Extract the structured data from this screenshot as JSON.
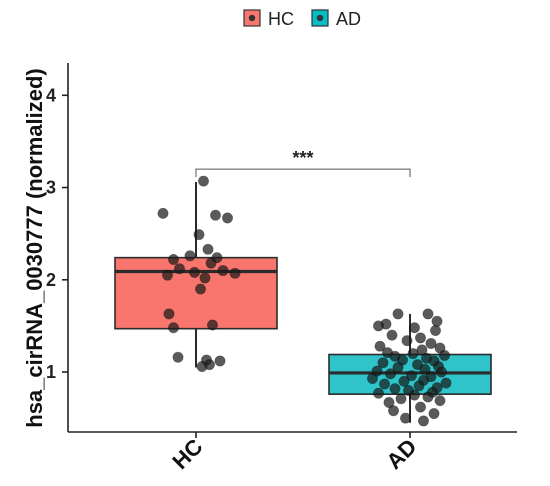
{
  "chart_data": {
    "type": "box",
    "ylabel": "hsa_cirRNA_0030777 (normalized)",
    "xlabel": "",
    "categories": [
      "HC",
      "AD"
    ],
    "ylim": [
      0.35,
      4.35
    ],
    "yticks": [
      1,
      2,
      3,
      4
    ],
    "grid": false,
    "legend": {
      "position": "top",
      "entries": [
        {
          "name": "HC",
          "color": "#F8766D"
        },
        {
          "name": "AD",
          "color": "#00BFC4"
        }
      ]
    },
    "significance": {
      "label": "***",
      "between": [
        "HC",
        "AD"
      ],
      "y": 3.2
    },
    "boxes": [
      {
        "group": "HC",
        "whisker_low": 1.05,
        "q1": 1.47,
        "median": 2.09,
        "q3": 2.24,
        "whisker_high": 3.06,
        "color": "#F8766D"
      },
      {
        "group": "AD",
        "whisker_low": 0.45,
        "q1": 0.76,
        "median": 0.99,
        "q3": 1.19,
        "whisker_high": 1.63,
        "color": "#2EC4C9"
      }
    ],
    "points": [
      {
        "group": "HC",
        "values": [
          3.07,
          2.72,
          2.7,
          2.67,
          2.49,
          2.33,
          2.26,
          2.24,
          2.22,
          2.18,
          2.12,
          2.1,
          2.08,
          2.07,
          2.05,
          2.02,
          1.9,
          1.63,
          1.51,
          1.48,
          1.16,
          1.13,
          1.12,
          1.08,
          1.06
        ],
        "jitter": [
          0.05,
          -0.22,
          0.13,
          0.21,
          0.02,
          0.08,
          -0.04,
          0.14,
          -0.15,
          0.1,
          -0.11,
          0.18,
          -0.01,
          0.26,
          -0.19,
          0.06,
          0.03,
          -0.18,
          0.11,
          -0.15,
          -0.12,
          0.07,
          0.16,
          0.09,
          0.04
        ]
      },
      {
        "group": "AD",
        "values": [
          1.63,
          1.63,
          1.55,
          1.52,
          1.5,
          1.48,
          1.45,
          1.4,
          1.37,
          1.34,
          1.31,
          1.28,
          1.26,
          1.24,
          1.21,
          1.2,
          1.18,
          1.17,
          1.15,
          1.13,
          1.12,
          1.1,
          1.08,
          1.06,
          1.05,
          1.03,
          1.01,
          1.0,
          0.98,
          0.96,
          0.95,
          0.93,
          0.91,
          0.9,
          0.88,
          0.87,
          0.85,
          0.83,
          0.82,
          0.8,
          0.78,
          0.77,
          0.75,
          0.73,
          0.71,
          0.69,
          0.67,
          0.62,
          0.58,
          0.55,
          0.5,
          0.47
        ],
        "jitter": [
          -0.08,
          0.12,
          0.18,
          -0.16,
          -0.21,
          0.03,
          0.17,
          -0.12,
          0.07,
          -0.02,
          0.14,
          -0.2,
          0.2,
          0.08,
          -0.15,
          0.02,
          0.23,
          -0.1,
          0.11,
          -0.05,
          0.16,
          -0.18,
          0.05,
          0.19,
          -0.08,
          0.1,
          -0.22,
          0.21,
          -0.13,
          0.01,
          0.14,
          -0.25,
          0.09,
          -0.04,
          0.24,
          -0.17,
          0.06,
          0.18,
          -0.1,
          -0.01,
          0.15,
          -0.21,
          0.03,
          0.12,
          -0.06,
          0.2,
          -0.14,
          0.07,
          -0.11,
          0.16,
          -0.03,
          0.09
        ]
      }
    ]
  }
}
